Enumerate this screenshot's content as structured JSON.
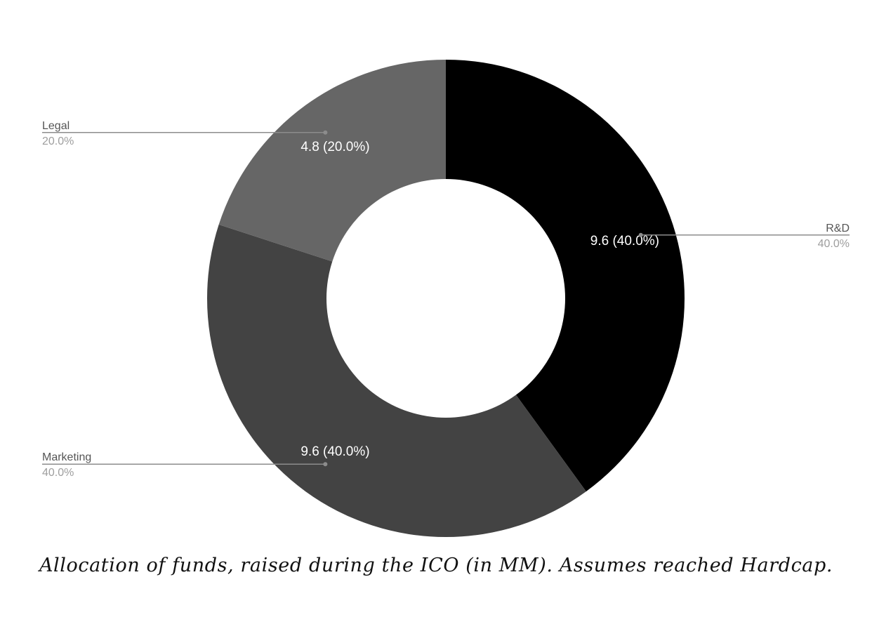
{
  "chart_data": {
    "type": "pie",
    "hole": true,
    "slices": [
      {
        "label": "R&D",
        "value": 9.6,
        "percent": "40.0%",
        "value_label": "9.6 (40.0%)",
        "color": "#000000"
      },
      {
        "label": "Marketing",
        "value": 9.6,
        "percent": "40.0%",
        "value_label": "9.6 (40.0%)",
        "color": "#434343"
      },
      {
        "label": "Legal",
        "value": 4.8,
        "percent": "20.0%",
        "value_label": "4.8 (20.0%)",
        "color": "#666666"
      }
    ]
  },
  "caption": "Allocation of funds, raised during the ICO (in MM). Assumes reached Hardcap."
}
